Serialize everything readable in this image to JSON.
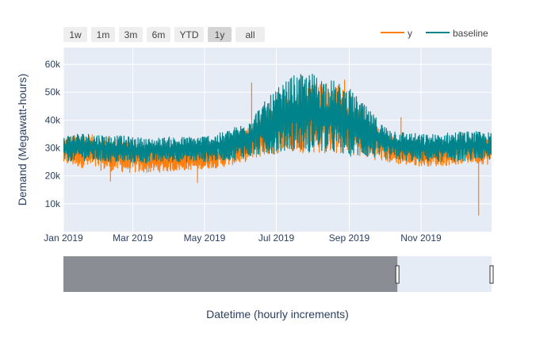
{
  "chart_data": {
    "type": "line",
    "title": "",
    "xlabel": "Datetime (hourly increments)",
    "ylabel": "Demand (Megawatt-hours)",
    "x_range": [
      "2019-01-01",
      "2019-12-31"
    ],
    "y_range": [
      0,
      66000
    ],
    "y_ticks": [
      10000,
      20000,
      30000,
      40000,
      50000,
      60000
    ],
    "y_tick_labels": [
      "10k",
      "20k",
      "30k",
      "40k",
      "50k",
      "60k"
    ],
    "x_ticks": [
      "2019-01-01",
      "2019-03-01",
      "2019-05-01",
      "2019-07-01",
      "2019-09-01",
      "2019-11-01"
    ],
    "x_tick_labels": [
      "Jan 2019",
      "Mar 2019",
      "May 2019",
      "Jul 2019",
      "Sep 2019",
      "Nov 2019"
    ],
    "grid": true,
    "legend_position": "top-right",
    "range_selector_buttons": [
      "1w",
      "1m",
      "3m",
      "6m",
      "YTD",
      "1y",
      "all"
    ],
    "range_selector_active": "1y",
    "range_slider_selected_fraction": 0.78,
    "colors": {
      "y": "#ff7f0e",
      "baseline": "#00838a",
      "plot_bg": "#e5ecf6",
      "slider_mask": "#8a8d93"
    },
    "series": [
      {
        "name": "y",
        "color": "#ff7f0e",
        "x": [
          "2019-01-01",
          "2019-01-15",
          "2019-02-01",
          "2019-02-15",
          "2019-03-01",
          "2019-03-15",
          "2019-04-01",
          "2019-04-15",
          "2019-05-01",
          "2019-05-15",
          "2019-06-01",
          "2019-06-15",
          "2019-07-01",
          "2019-07-15",
          "2019-08-01",
          "2019-08-15",
          "2019-09-01",
          "2019-09-15",
          "2019-10-01",
          "2019-10-15",
          "2019-11-01",
          "2019-11-15",
          "2019-12-01",
          "2019-12-15",
          "2019-12-31"
        ],
        "low": [
          24000,
          23000,
          22000,
          21500,
          21000,
          21000,
          21500,
          22000,
          22500,
          23000,
          24500,
          26500,
          28000,
          28500,
          28000,
          28000,
          27500,
          26500,
          25000,
          24000,
          23500,
          23500,
          24000,
          24500,
          24000
        ],
        "high": [
          34000,
          35000,
          34500,
          33500,
          32000,
          31000,
          30000,
          29500,
          29500,
          31000,
          35000,
          40000,
          45000,
          50000,
          53000,
          54000,
          50000,
          42000,
          35000,
          33000,
          32000,
          32500,
          33500,
          35000,
          34000
        ],
        "spikes": [
          {
            "x": "2019-02-10",
            "y": 18000
          },
          {
            "x": "2019-04-25",
            "y": 17500
          },
          {
            "x": "2019-06-10",
            "y": 53500
          },
          {
            "x": "2019-08-28",
            "y": 54500
          },
          {
            "x": "2019-10-15",
            "y": 41000
          },
          {
            "x": "2019-12-20",
            "y": 5800
          }
        ]
      },
      {
        "name": "baseline",
        "color": "#00838a",
        "x": [
          "2019-01-01",
          "2019-01-15",
          "2019-02-01",
          "2019-02-15",
          "2019-03-01",
          "2019-03-15",
          "2019-04-01",
          "2019-04-15",
          "2019-05-01",
          "2019-05-15",
          "2019-06-01",
          "2019-06-15",
          "2019-07-01",
          "2019-07-15",
          "2019-08-01",
          "2019-08-15",
          "2019-09-01",
          "2019-09-15",
          "2019-10-01",
          "2019-10-15",
          "2019-11-01",
          "2019-11-15",
          "2019-12-01",
          "2019-12-15",
          "2019-12-31"
        ],
        "low": [
          25000,
          25500,
          25000,
          24500,
          24500,
          24500,
          25000,
          25000,
          25000,
          25500,
          26000,
          27000,
          28000,
          29000,
          28500,
          28000,
          27000,
          26500,
          26000,
          25500,
          25000,
          25000,
          25000,
          25500,
          25000
        ],
        "high": [
          34500,
          35500,
          35000,
          34500,
          34000,
          33500,
          34000,
          34000,
          34500,
          35500,
          38500,
          44000,
          51000,
          56000,
          57000,
          55000,
          51500,
          45000,
          38000,
          36000,
          35000,
          35000,
          36000,
          36000,
          35500
        ]
      }
    ]
  }
}
